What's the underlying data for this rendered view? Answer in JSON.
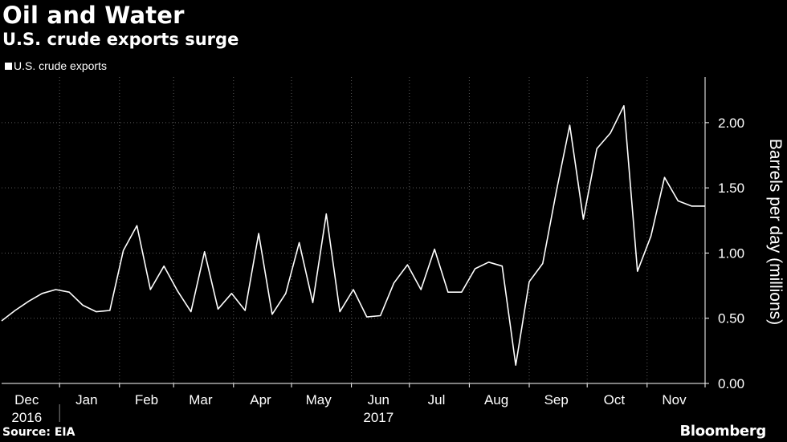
{
  "header": {
    "title": "Oil and Water",
    "subtitle": "U.S. crude exports surge"
  },
  "footer": {
    "source": "Source: EIA",
    "brand": "Bloomberg"
  },
  "colors": {
    "background": "#000000",
    "line": "#ffffff",
    "grid": "#5a5a5a"
  },
  "chart_data": {
    "type": "line",
    "title": "Oil and Water",
    "subtitle": "U.S. crude exports surge",
    "ylabel": "Barrels per day (millions)",
    "ylim": [
      0,
      2.35
    ],
    "xlim": [
      "2016-12-02",
      "2017-12-01"
    ],
    "y_ticks": [
      0.0,
      0.5,
      1.0,
      1.5,
      2.0
    ],
    "y_tick_labels": [
      "0.00",
      "0.50",
      "1.00",
      "1.50",
      "2.00"
    ],
    "x_month_ticks": [
      "2016-12-01",
      "2017-01-01",
      "2017-02-01",
      "2017-03-01",
      "2017-04-01",
      "2017-05-01",
      "2017-06-01",
      "2017-07-01",
      "2017-08-01",
      "2017-09-01",
      "2017-10-01",
      "2017-11-01",
      "2017-12-01"
    ],
    "x_month_labels": [
      {
        "date": "2016-12-15",
        "label": "Dec"
      },
      {
        "date": "2017-01-15",
        "label": "Jan"
      },
      {
        "date": "2017-02-15",
        "label": "Feb"
      },
      {
        "date": "2017-03-15",
        "label": "Mar"
      },
      {
        "date": "2017-04-15",
        "label": "Apr"
      },
      {
        "date": "2017-05-15",
        "label": "May"
      },
      {
        "date": "2017-06-15",
        "label": "Jun"
      },
      {
        "date": "2017-07-15",
        "label": "Jul"
      },
      {
        "date": "2017-08-15",
        "label": "Aug"
      },
      {
        "date": "2017-09-15",
        "label": "Sep"
      },
      {
        "date": "2017-10-15",
        "label": "Oct"
      },
      {
        "date": "2017-11-15",
        "label": "Nov"
      }
    ],
    "x_year_labels": [
      {
        "date": "2016-12-15",
        "label": "2016"
      },
      {
        "date": "2017-06-15",
        "label": "2017"
      }
    ],
    "grid": true,
    "legend": "top-left",
    "series": [
      {
        "name": "U.S. crude exports",
        "x": [
          "2016-12-02",
          "2016-12-09",
          "2016-12-16",
          "2016-12-23",
          "2016-12-30",
          "2017-01-06",
          "2017-01-13",
          "2017-01-20",
          "2017-01-27",
          "2017-02-03",
          "2017-02-10",
          "2017-02-17",
          "2017-02-24",
          "2017-03-03",
          "2017-03-10",
          "2017-03-17",
          "2017-03-24",
          "2017-03-31",
          "2017-04-07",
          "2017-04-14",
          "2017-04-21",
          "2017-04-28",
          "2017-05-05",
          "2017-05-12",
          "2017-05-19",
          "2017-05-26",
          "2017-06-02",
          "2017-06-09",
          "2017-06-16",
          "2017-06-23",
          "2017-06-30",
          "2017-07-07",
          "2017-07-14",
          "2017-07-21",
          "2017-07-28",
          "2017-08-04",
          "2017-08-11",
          "2017-08-18",
          "2017-08-25",
          "2017-09-01",
          "2017-09-08",
          "2017-09-15",
          "2017-09-22",
          "2017-09-29",
          "2017-10-06",
          "2017-10-13",
          "2017-10-20",
          "2017-10-27",
          "2017-11-03",
          "2017-11-10",
          "2017-11-17",
          "2017-11-24",
          "2017-12-01"
        ],
        "values": [
          0.48,
          0.56,
          0.63,
          0.69,
          0.72,
          0.7,
          0.6,
          0.55,
          0.56,
          1.02,
          1.21,
          0.72,
          0.9,
          0.71,
          0.55,
          1.01,
          0.57,
          0.69,
          0.56,
          1.15,
          0.53,
          0.69,
          1.08,
          0.62,
          1.3,
          0.55,
          0.72,
          0.51,
          0.52,
          0.77,
          0.91,
          0.72,
          1.03,
          0.7,
          0.7,
          0.88,
          0.93,
          0.9,
          0.14,
          0.78,
          0.92,
          1.47,
          1.98,
          1.26,
          1.8,
          1.92,
          2.13,
          0.86,
          1.13,
          1.58,
          1.4,
          1.36,
          1.36
        ]
      }
    ]
  }
}
